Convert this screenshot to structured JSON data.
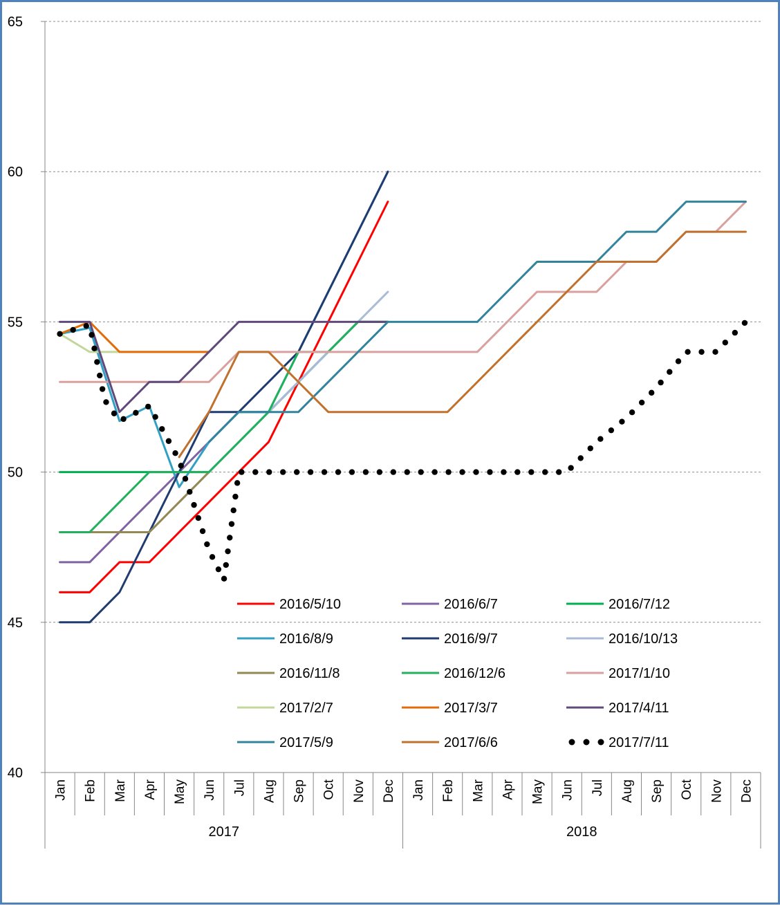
{
  "chart_data": {
    "type": "line",
    "title": "",
    "xlabel": "",
    "ylabel": "",
    "ylim": [
      40,
      65
    ],
    "y_ticks": [
      "40",
      "45",
      "50",
      "55",
      "60",
      "65"
    ],
    "grid": "horizontal dashed",
    "legend_position": "lower-center, inside plot, 3 columns",
    "x_months": [
      "Jan",
      "Feb",
      "Mar",
      "Apr",
      "May",
      "Jun",
      "Jul",
      "Aug",
      "Sep",
      "Oct",
      "Nov",
      "Dec",
      "Jan",
      "Feb",
      "Mar",
      "Apr",
      "May",
      "Jun",
      "Jul",
      "Aug",
      "Sep",
      "Oct",
      "Nov",
      "Dec"
    ],
    "x_years": [
      {
        "label": "2017",
        "from": "Jan",
        "months": 12
      },
      {
        "label": "2018",
        "from": "Jan",
        "months": 12
      }
    ],
    "series": [
      {
        "name": "2016/5/10",
        "color": "#ff0000",
        "style": "solid",
        "points": [
          [
            0,
            46
          ],
          [
            1,
            46
          ],
          [
            2,
            47
          ],
          [
            3,
            47
          ],
          [
            4,
            48
          ],
          [
            5,
            49
          ],
          [
            6,
            50
          ],
          [
            7,
            51
          ],
          [
            8,
            53
          ],
          [
            9,
            55
          ],
          [
            10,
            57
          ],
          [
            11,
            59
          ]
        ]
      },
      {
        "name": "2016/6/7",
        "color": "#8064a2",
        "style": "solid",
        "points": [
          [
            0,
            47
          ],
          [
            1,
            47
          ],
          [
            2,
            48
          ],
          [
            3,
            49
          ],
          [
            4,
            50
          ],
          [
            5,
            51
          ],
          [
            6,
            52
          ],
          [
            7,
            52
          ],
          [
            8,
            53
          ],
          [
            9,
            54
          ],
          [
            10,
            55
          ],
          [
            11,
            55
          ]
        ]
      },
      {
        "name": "2016/7/12",
        "color": "#00b050",
        "style": "solid",
        "points": [
          [
            0,
            50
          ],
          [
            1,
            50
          ],
          [
            2,
            50
          ],
          [
            3,
            50
          ],
          [
            4,
            50
          ],
          [
            5,
            50
          ],
          [
            6,
            51
          ],
          [
            7,
            52
          ],
          [
            8,
            53
          ],
          [
            9,
            54
          ],
          [
            10,
            55
          ],
          [
            11,
            55
          ]
        ]
      },
      {
        "name": "2016/8/9",
        "color": "#31a0c4",
        "style": "solid",
        "points": [
          [
            0,
            54.6
          ],
          [
            1,
            54.8
          ],
          [
            2,
            51.7
          ],
          [
            3,
            52.2
          ],
          [
            4,
            49.5
          ],
          [
            5,
            51
          ],
          [
            6,
            52
          ],
          [
            7,
            52
          ],
          [
            8,
            54
          ],
          [
            9,
            56
          ],
          [
            10,
            58
          ],
          [
            11,
            60
          ]
        ]
      },
      {
        "name": "2016/9/7",
        "color": "#1f3b70",
        "style": "solid",
        "points": [
          [
            0,
            45
          ],
          [
            1,
            45
          ],
          [
            2,
            46
          ],
          [
            3,
            48
          ],
          [
            4,
            50
          ],
          [
            5,
            52
          ],
          [
            6,
            52
          ],
          [
            7,
            53
          ],
          [
            8,
            54
          ],
          [
            9,
            56
          ],
          [
            10,
            58
          ],
          [
            11,
            60
          ]
        ]
      },
      {
        "name": "2016/10/13",
        "color": "#a9bbd9",
        "style": "solid",
        "points": [
          [
            0,
            48
          ],
          [
            1,
            48
          ],
          [
            2,
            48
          ],
          [
            3,
            48
          ],
          [
            4,
            49
          ],
          [
            5,
            50
          ],
          [
            6,
            51
          ],
          [
            7,
            52
          ],
          [
            8,
            53
          ],
          [
            9,
            54
          ],
          [
            10,
            55
          ],
          [
            11,
            56
          ]
        ]
      },
      {
        "name": "2016/11/8",
        "color": "#938953",
        "style": "solid",
        "points": [
          [
            0,
            48
          ],
          [
            1,
            48
          ],
          [
            2,
            48
          ],
          [
            3,
            48
          ],
          [
            4,
            49
          ],
          [
            5,
            50
          ]
        ]
      },
      {
        "name": "2016/12/6",
        "color": "#21b05c",
        "style": "solid",
        "points": [
          [
            0,
            48
          ],
          [
            1,
            48
          ],
          [
            2,
            49
          ],
          [
            3,
            50
          ],
          [
            4,
            50
          ],
          [
            5,
            50
          ],
          [
            6,
            51
          ],
          [
            7,
            52
          ],
          [
            8,
            54
          ],
          [
            9,
            54
          ],
          [
            10,
            55
          ],
          [
            11,
            55
          ]
        ]
      },
      {
        "name": "2017/1/10",
        "color": "#d9a09e",
        "style": "solid",
        "points": [
          [
            0,
            53
          ],
          [
            1,
            53
          ],
          [
            2,
            53
          ],
          [
            3,
            53
          ],
          [
            4,
            53
          ],
          [
            5,
            53
          ],
          [
            6,
            54
          ],
          [
            7,
            54
          ],
          [
            8,
            54
          ],
          [
            9,
            54
          ],
          [
            10,
            54
          ],
          [
            11,
            54
          ],
          [
            12,
            54
          ],
          [
            13,
            54
          ],
          [
            14,
            54
          ],
          [
            15,
            55
          ],
          [
            16,
            56
          ],
          [
            17,
            56
          ],
          [
            18,
            56
          ],
          [
            19,
            57
          ],
          [
            20,
            57
          ],
          [
            21,
            58
          ],
          [
            22,
            58
          ],
          [
            23,
            59
          ]
        ]
      },
      {
        "name": "2017/2/7",
        "color": "#c3d69b",
        "style": "solid",
        "points": [
          [
            0,
            54.6
          ],
          [
            1,
            54
          ],
          [
            2,
            54
          ],
          [
            3,
            54
          ],
          [
            4,
            54
          ],
          [
            5,
            54
          ]
        ]
      },
      {
        "name": "2017/3/7",
        "color": "#e36c09",
        "style": "solid",
        "points": [
          [
            0,
            54.6
          ],
          [
            1,
            55
          ],
          [
            2,
            54
          ],
          [
            3,
            54
          ],
          [
            4,
            54
          ],
          [
            5,
            54
          ]
        ]
      },
      {
        "name": "2017/4/11",
        "color": "#604a7b",
        "style": "solid",
        "points": [
          [
            0,
            55
          ],
          [
            1,
            55
          ],
          [
            2,
            52
          ],
          [
            3,
            53
          ],
          [
            4,
            53
          ],
          [
            5,
            54
          ],
          [
            6,
            55
          ],
          [
            7,
            55
          ],
          [
            8,
            55
          ],
          [
            9,
            55
          ],
          [
            10,
            55
          ],
          [
            11,
            55
          ]
        ]
      },
      {
        "name": "2017/5/9",
        "color": "#31849b",
        "style": "solid",
        "points": [
          [
            5,
            51
          ],
          [
            6,
            52
          ],
          [
            7,
            52
          ],
          [
            8,
            52
          ],
          [
            9,
            53
          ],
          [
            10,
            54
          ],
          [
            11,
            55
          ],
          [
            12,
            55
          ],
          [
            13,
            55
          ],
          [
            14,
            55
          ],
          [
            15,
            56
          ],
          [
            16,
            57
          ],
          [
            17,
            57
          ],
          [
            18,
            57
          ],
          [
            19,
            58
          ],
          [
            20,
            58
          ],
          [
            21,
            59
          ],
          [
            22,
            59
          ],
          [
            23,
            59
          ]
        ]
      },
      {
        "name": "2017/6/6",
        "color": "#c0712e",
        "style": "solid",
        "points": [
          [
            4,
            50.5
          ],
          [
            5,
            52
          ],
          [
            6,
            54
          ],
          [
            7,
            54
          ],
          [
            8,
            53
          ],
          [
            9,
            52
          ],
          [
            10,
            52
          ],
          [
            11,
            52
          ],
          [
            12,
            52
          ],
          [
            13,
            52
          ],
          [
            14,
            53
          ],
          [
            15,
            54
          ],
          [
            16,
            55
          ],
          [
            17,
            56
          ],
          [
            18,
            57
          ],
          [
            19,
            57
          ],
          [
            20,
            57
          ],
          [
            21,
            58
          ],
          [
            22,
            58
          ],
          [
            23,
            58
          ]
        ]
      },
      {
        "name": "2017/7/11",
        "color": "#000000",
        "style": "dotted",
        "points": [
          [
            0,
            54.6
          ],
          [
            1,
            54.9
          ],
          [
            1.5,
            52.4
          ],
          [
            2,
            51.7
          ],
          [
            3,
            52.2
          ],
          [
            4,
            50.4
          ],
          [
            5,
            47.4
          ],
          [
            5.5,
            46.4
          ],
          [
            6,
            50
          ],
          [
            7,
            50
          ],
          [
            8,
            50
          ],
          [
            9,
            50
          ],
          [
            10,
            50
          ],
          [
            11,
            50
          ],
          [
            12,
            50
          ],
          [
            13,
            50
          ],
          [
            14,
            50
          ],
          [
            15,
            50
          ],
          [
            16,
            50
          ],
          [
            17,
            50
          ],
          [
            18,
            51
          ],
          [
            19,
            51.8
          ],
          [
            20,
            52.8
          ],
          [
            21,
            54
          ],
          [
            22,
            54
          ],
          [
            23,
            55
          ]
        ]
      }
    ]
  }
}
